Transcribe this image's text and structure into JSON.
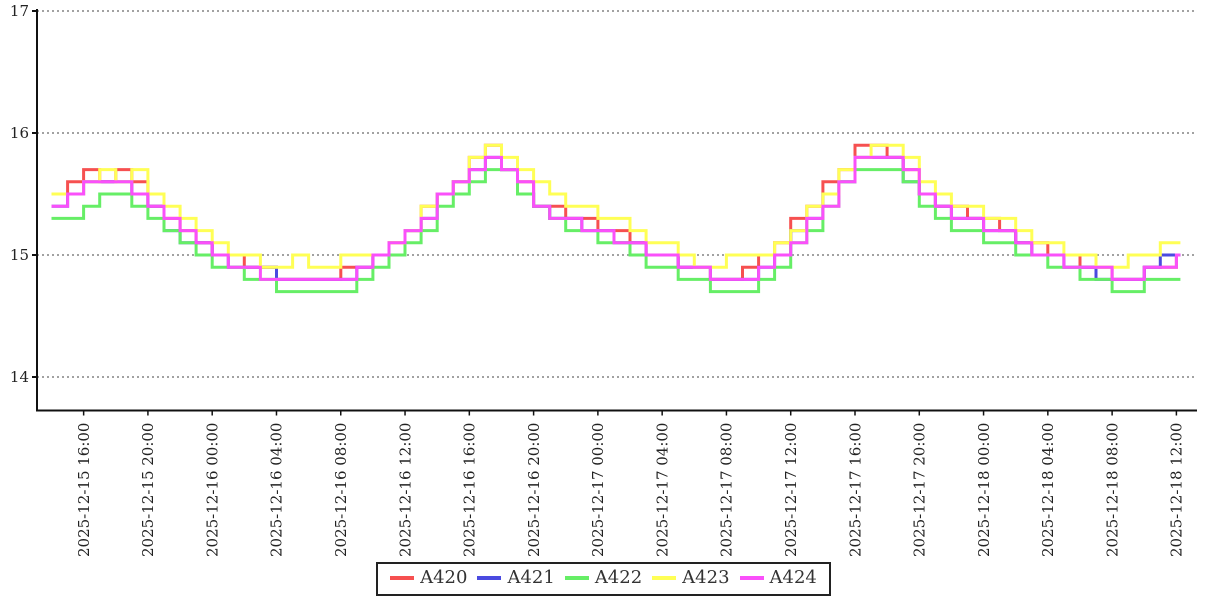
{
  "chart_data": {
    "type": "line",
    "subtype": "step-after",
    "title": "",
    "xlabel": "",
    "ylabel": "",
    "x_start": "2025-12-15 14:00",
    "x_end": "2025-12-18 12:00",
    "x_interval_hours": 1,
    "x_tick_interval_hours": 4,
    "x_tick_first_offset_hours": 2,
    "x_tick_labels": [
      "2025-12-15 16:00",
      "2025-12-15 20:00",
      "2025-12-16 00:00",
      "2025-12-16 04:00",
      "2025-12-16 08:00",
      "2025-12-16 12:00",
      "2025-12-16 16:00",
      "2025-12-16 20:00",
      "2025-12-17 00:00",
      "2025-12-17 04:00",
      "2025-12-17 08:00",
      "2025-12-17 12:00",
      "2025-12-17 16:00",
      "2025-12-17 20:00",
      "2025-12-18 00:00",
      "2025-12-18 04:00",
      "2025-12-18 08:00",
      "2025-12-18 12:00"
    ],
    "y_ticks": [
      14,
      15,
      16,
      17
    ],
    "ylim": [
      13.72,
      17.02
    ],
    "grid": "horizontal-dotted",
    "grid_color": "#444444",
    "axis_color": "#111111",
    "legend_position": "bottom-center",
    "series": [
      {
        "name": "A420",
        "color": "#f65050",
        "values": [
          15.5,
          15.6,
          15.7,
          15.6,
          15.7,
          15.6,
          15.4,
          15.3,
          15.2,
          15.1,
          15.0,
          15.0,
          14.9,
          14.9,
          14.8,
          14.8,
          14.8,
          14.8,
          14.9,
          14.9,
          15.0,
          15.1,
          15.2,
          15.4,
          15.5,
          15.6,
          15.8,
          15.9,
          15.7,
          15.6,
          15.4,
          15.4,
          15.3,
          15.3,
          15.2,
          15.2,
          15.1,
          15.0,
          15.0,
          14.9,
          14.9,
          14.8,
          14.8,
          14.9,
          15.0,
          15.1,
          15.3,
          15.4,
          15.6,
          15.7,
          15.9,
          15.9,
          15.8,
          15.7,
          15.5,
          15.4,
          15.4,
          15.3,
          15.3,
          15.2,
          15.1,
          15.1,
          15.0,
          15.0,
          14.9,
          14.9,
          14.8,
          14.8,
          14.9,
          14.9,
          15.0
        ]
      },
      {
        "name": "A421",
        "color": "#4a4ae0",
        "values": [
          15.4,
          15.5,
          15.6,
          15.6,
          15.6,
          15.5,
          15.4,
          15.2,
          15.1,
          15.1,
          15.0,
          14.9,
          14.9,
          14.9,
          14.8,
          14.8,
          14.8,
          14.8,
          14.8,
          14.9,
          15.0,
          15.0,
          15.2,
          15.3,
          15.5,
          15.6,
          15.7,
          15.8,
          15.7,
          15.5,
          15.4,
          15.3,
          15.3,
          15.2,
          15.2,
          15.1,
          15.1,
          15.0,
          15.0,
          14.9,
          14.9,
          14.8,
          14.8,
          14.8,
          14.9,
          15.0,
          15.2,
          15.3,
          15.5,
          15.6,
          15.8,
          15.8,
          15.8,
          15.6,
          15.5,
          15.4,
          15.3,
          15.3,
          15.2,
          15.2,
          15.1,
          15.0,
          15.0,
          14.9,
          14.9,
          14.8,
          14.8,
          14.8,
          14.9,
          15.0,
          15.0
        ]
      },
      {
        "name": "A422",
        "color": "#66ee66",
        "values": [
          15.3,
          15.3,
          15.4,
          15.5,
          15.5,
          15.4,
          15.3,
          15.2,
          15.1,
          15.0,
          14.9,
          14.9,
          14.8,
          14.8,
          14.7,
          14.7,
          14.7,
          14.7,
          14.7,
          14.8,
          14.9,
          15.0,
          15.1,
          15.2,
          15.4,
          15.5,
          15.6,
          15.7,
          15.7,
          15.5,
          15.4,
          15.3,
          15.2,
          15.2,
          15.1,
          15.1,
          15.0,
          14.9,
          14.9,
          14.8,
          14.8,
          14.7,
          14.7,
          14.7,
          14.8,
          14.9,
          15.1,
          15.2,
          15.4,
          15.6,
          15.7,
          15.7,
          15.7,
          15.6,
          15.4,
          15.3,
          15.2,
          15.2,
          15.1,
          15.1,
          15.0,
          15.0,
          14.9,
          14.9,
          14.8,
          14.8,
          14.7,
          14.7,
          14.8,
          14.8,
          14.8
        ]
      },
      {
        "name": "A423",
        "color": "#ffff55",
        "values": [
          15.5,
          15.5,
          15.6,
          15.7,
          15.6,
          15.7,
          15.5,
          15.4,
          15.3,
          15.2,
          15.1,
          15.0,
          15.0,
          14.9,
          14.9,
          15.0,
          14.9,
          14.9,
          15.0,
          15.0,
          15.0,
          15.1,
          15.2,
          15.4,
          15.5,
          15.6,
          15.8,
          15.9,
          15.8,
          15.7,
          15.6,
          15.5,
          15.4,
          15.4,
          15.3,
          15.3,
          15.2,
          15.1,
          15.1,
          15.0,
          14.9,
          14.9,
          15.0,
          15.0,
          15.0,
          15.1,
          15.2,
          15.4,
          15.5,
          15.7,
          15.8,
          15.9,
          15.9,
          15.8,
          15.6,
          15.5,
          15.4,
          15.4,
          15.3,
          15.3,
          15.2,
          15.1,
          15.1,
          15.0,
          15.0,
          14.9,
          14.9,
          15.0,
          15.0,
          15.1,
          15.1
        ]
      },
      {
        "name": "A424",
        "color": "#fa50fa",
        "values": [
          15.4,
          15.5,
          15.6,
          15.6,
          15.6,
          15.5,
          15.4,
          15.3,
          15.2,
          15.1,
          15.0,
          14.9,
          14.9,
          14.8,
          14.8,
          14.8,
          14.8,
          14.8,
          14.8,
          14.9,
          15.0,
          15.1,
          15.2,
          15.3,
          15.5,
          15.6,
          15.7,
          15.8,
          15.7,
          15.6,
          15.4,
          15.3,
          15.3,
          15.2,
          15.2,
          15.1,
          15.1,
          15.0,
          15.0,
          14.9,
          14.9,
          14.8,
          14.8,
          14.8,
          14.9,
          15.0,
          15.1,
          15.3,
          15.4,
          15.6,
          15.8,
          15.8,
          15.8,
          15.7,
          15.5,
          15.4,
          15.3,
          15.3,
          15.2,
          15.2,
          15.1,
          15.0,
          15.0,
          14.9,
          14.9,
          14.9,
          14.8,
          14.8,
          14.9,
          14.9,
          15.0
        ]
      }
    ]
  }
}
